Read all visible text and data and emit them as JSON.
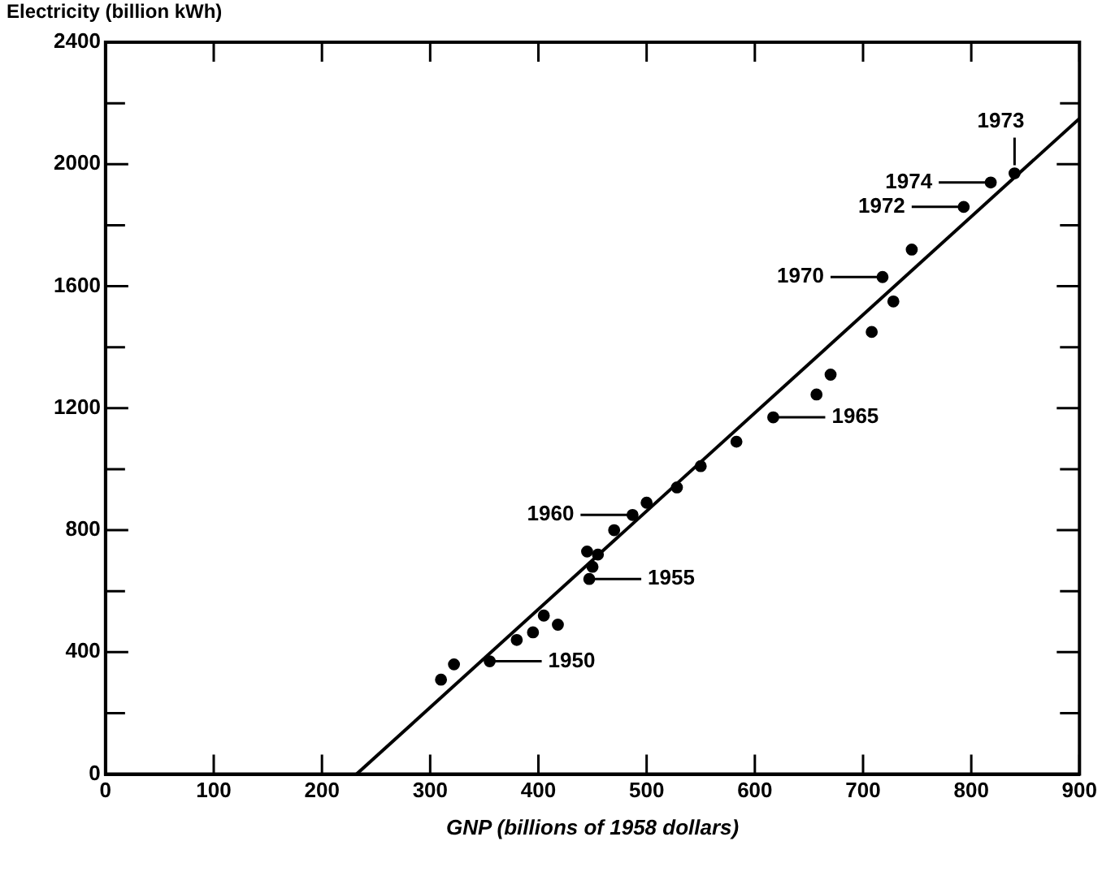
{
  "chart_data": {
    "type": "scatter",
    "xlabel": "GNP (billions of 1958 dollars)",
    "ylabel": "Electricity (billion kWh)",
    "xlim": [
      0,
      900
    ],
    "xticks": [
      0,
      100,
      200,
      300,
      400,
      500,
      600,
      700,
      800,
      900
    ],
    "ylim": [
      0,
      2400
    ],
    "yticks": [
      0,
      {
        "value": 200,
        "label": null
      },
      400,
      {
        "value": 600,
        "label": null
      },
      800,
      {
        "value": 1000,
        "label": null
      },
      1200,
      {
        "value": 1400,
        "label": null
      },
      1600,
      {
        "value": 1800,
        "label": null
      },
      2000,
      {
        "value": 2200,
        "label": null
      },
      2400
    ],
    "grid": false,
    "legend": false,
    "marker": "circle",
    "series": [
      {
        "color": "#000000",
        "x": [
          310,
          322,
          355,
          380,
          395,
          405,
          418,
          447,
          445,
          455,
          450,
          470,
          487,
          500,
          528,
          550,
          583,
          617,
          657,
          670,
          708,
          718,
          728,
          745,
          793,
          818,
          840
        ],
        "values": [
          310,
          360,
          370,
          440,
          465,
          520,
          490,
          640,
          730,
          720,
          680,
          800,
          850,
          890,
          940,
          1010,
          1090,
          1170,
          1245,
          1310,
          1450,
          1630,
          1550,
          1720,
          1860,
          1940,
          1970
        ]
      },
      {
        "type": "line",
        "color": "#000000",
        "marker": "none",
        "line_style": "solid",
        "x": [
          232,
          900
        ],
        "values": [
          0,
          2150
        ]
      }
    ],
    "annotations": [
      {
        "text": "1950",
        "x": 355,
        "y": 370
      },
      {
        "text": "1955",
        "x": 447,
        "y": 640
      },
      {
        "text": "1960",
        "x": 487,
        "y": 850
      },
      {
        "text": "1965",
        "x": 617,
        "y": 1170
      },
      {
        "text": "1970",
        "x": 718,
        "y": 1630
      },
      {
        "text": "1972",
        "x": 793,
        "y": 1860
      },
      {
        "text": "1974",
        "x": 818,
        "y": 1940
      },
      {
        "text": "1973",
        "x": 840,
        "y": 1970
      }
    ]
  }
}
